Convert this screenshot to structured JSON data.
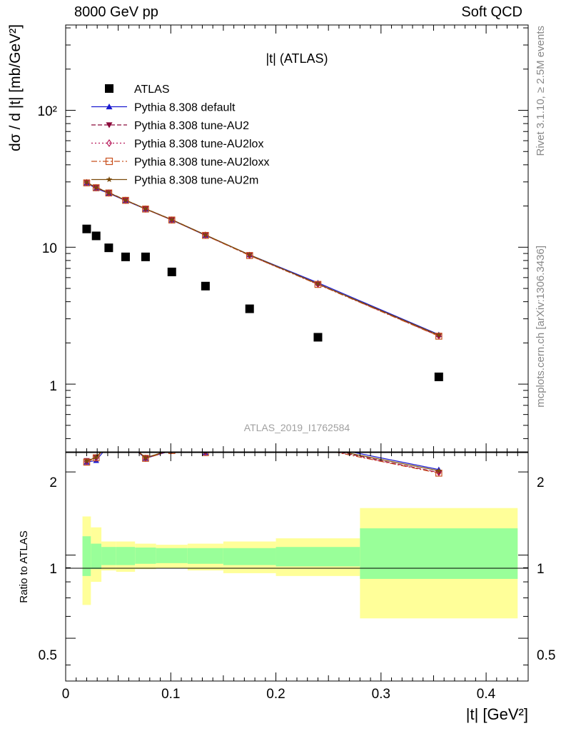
{
  "header": {
    "left": "8000 GeV pp",
    "right": "Soft QCD"
  },
  "side_labels": {
    "rivet": "Rivet 3.1.10, ≥ 2.5M events",
    "mcplots": "mcplots.cern.ch [arXiv:1306.3436]"
  },
  "chart_data": {
    "type": "scatter",
    "title": "|t| (ATLAS)",
    "watermark": "ATLAS_2019_I1762584",
    "xlabel": "|t| [GeV²]",
    "ylabel": "dσ / d |t| [mb/GeV²]",
    "ratio_ylabel": "Ratio to ATLAS",
    "xlim": [
      0,
      0.44
    ],
    "ylim": [
      0.32,
      420
    ],
    "yscale": "log",
    "ratio_ylim": [
      0.35,
      2.35
    ],
    "ratio_yscale": "log",
    "x_ticks": [
      "0",
      "0.1",
      "0.2",
      "0.3",
      "0.4"
    ],
    "y_ticks": [
      "1",
      "10",
      "10²"
    ],
    "ratio_ticks": [
      "0.5",
      "1",
      "2"
    ],
    "legend_position": "top-left",
    "bin_edges": [
      0.016,
      0.024,
      0.034,
      0.048,
      0.066,
      0.086,
      0.116,
      0.15,
      0.2,
      0.28,
      0.43
    ],
    "x": [
      0.02,
      0.029,
      0.041,
      0.057,
      0.076,
      0.101,
      0.133,
      0.175,
      0.24,
      0.355
    ],
    "series": [
      {
        "name": "ATLAS",
        "color": "#000000",
        "marker": "square",
        "line": "none",
        "values": [
          13.6,
          12.1,
          9.9,
          8.5,
          8.5,
          6.6,
          5.2,
          3.55,
          2.2,
          1.13
        ]
      },
      {
        "name": "Pythia 8.308 default",
        "color": "#1a1ad0",
        "marker": "triangle-up",
        "line": "solid",
        "values": [
          29.5,
          26.8,
          24.8,
          21.9,
          19.0,
          15.8,
          12.2,
          8.8,
          5.5,
          2.3
        ],
        "ratio": [
          2.17,
          2.2,
          2.5,
          2.57,
          2.24,
          2.39,
          2.35,
          2.48,
          2.5,
          2.04
        ]
      },
      {
        "name": "Pythia 8.308 tune-AU2",
        "color": "#8b0a3b",
        "marker": "triangle-down",
        "line": "dashed",
        "values": [
          29.9,
          27.4,
          25.1,
          22.1,
          19.1,
          15.9,
          12.3,
          8.75,
          5.4,
          2.25
        ],
        "ratio": [
          2.2,
          2.26,
          2.53,
          2.6,
          2.25,
          2.41,
          2.37,
          2.46,
          2.45,
          1.99
        ]
      },
      {
        "name": "Pythia 8.308 tune-AU2lox",
        "color": "#b81a5a",
        "marker": "diamond-open",
        "line": "dotted",
        "values": [
          29.6,
          27.2,
          24.9,
          22.0,
          19.0,
          15.8,
          12.25,
          8.7,
          5.35,
          2.25
        ],
        "ratio": [
          2.18,
          2.25,
          2.52,
          2.59,
          2.24,
          2.4,
          2.36,
          2.45,
          2.43,
          1.99
        ]
      },
      {
        "name": "Pythia 8.308 tune-AU2loxx",
        "color": "#c8501e",
        "marker": "square-open",
        "line": "dashdot",
        "values": [
          29.5,
          27.2,
          24.9,
          22.0,
          19.0,
          15.8,
          12.2,
          8.7,
          5.35,
          2.24
        ],
        "ratio": [
          2.17,
          2.25,
          2.52,
          2.59,
          2.24,
          2.39,
          2.35,
          2.45,
          2.43,
          1.98
        ]
      },
      {
        "name": "Pythia 8.308 tune-AU2m",
        "color": "#7a4a0a",
        "marker": "star",
        "line": "solid",
        "values": [
          29.8,
          27.3,
          25.0,
          22.1,
          19.1,
          15.9,
          12.3,
          8.8,
          5.4,
          2.28
        ],
        "ratio": [
          2.19,
          2.26,
          2.53,
          2.6,
          2.25,
          2.41,
          2.37,
          2.48,
          2.46,
          2.02
        ]
      }
    ],
    "uncertainty_band": {
      "inner_color": "#99ff99",
      "outer_color": "#ffff99",
      "inner_lo": [
        0.84,
        0.89,
        0.92,
        0.92,
        0.93,
        0.935,
        0.93,
        0.92,
        0.91,
        0.82
      ],
      "inner_hi": [
        1.17,
        1.1,
        1.07,
        1.07,
        1.065,
        1.06,
        1.06,
        1.06,
        1.07,
        1.25
      ],
      "outer_lo": [
        0.66,
        0.8,
        0.88,
        0.87,
        0.89,
        0.895,
        0.88,
        0.86,
        0.84,
        0.59
      ],
      "outer_hi": [
        1.38,
        1.26,
        1.12,
        1.12,
        1.1,
        1.09,
        1.1,
        1.12,
        1.15,
        1.48
      ]
    }
  }
}
